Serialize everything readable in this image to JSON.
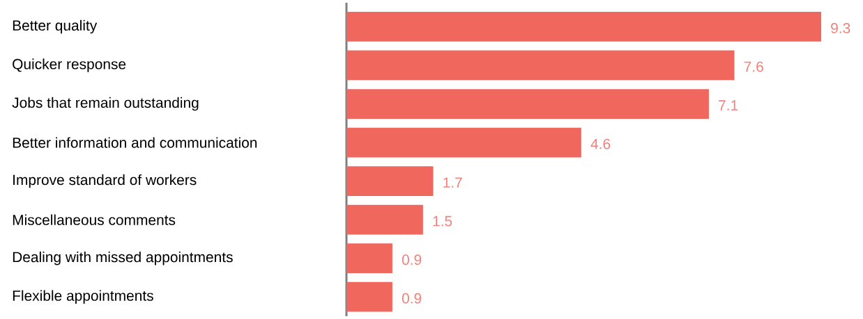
{
  "chart_data": {
    "type": "bar",
    "orientation": "horizontal",
    "categories": [
      "Better quality",
      "Quicker response",
      "Jobs that remain outstanding",
      "Better information and communication",
      "Improve standard of workers",
      "Miscellaneous comments",
      "Dealing with missed appointments",
      "Flexible appointments"
    ],
    "values": [
      9.3,
      7.6,
      7.1,
      4.6,
      1.7,
      1.5,
      0.9,
      0.9
    ],
    "color": "#f0675e",
    "data_labels": true
  }
}
